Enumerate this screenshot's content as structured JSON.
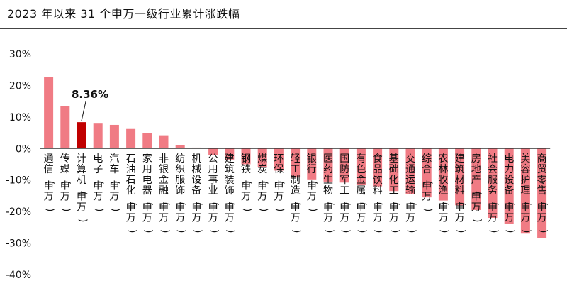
{
  "title": "2023 年以来 31 个申万一级行业累计涨跌幅",
  "chart_data": {
    "type": "bar",
    "ylim": [
      -40,
      30
    ],
    "yticks": [
      "30%",
      "20%",
      "10%",
      "0%",
      "-10%",
      "-20%",
      "-30%",
      "-40%"
    ],
    "grid": false,
    "legend": "none",
    "colors": {
      "bar": "#f07b84",
      "highlight": "#c00000"
    },
    "categories": [
      "通信(申万)",
      "传媒(申万)",
      "计算机(申万)",
      "电子(申万)",
      "汽车(申万)",
      "石油石化(申万)",
      "家用电器(申万)",
      "非银金融(申万)",
      "纺织服饰(申万)",
      "机械设备(申万)",
      "公用事业(申万)",
      "建筑装饰(申万)",
      "钢铁(申万)",
      "煤炭(申万)",
      "环保(申万)",
      "轻工制造(申万)",
      "银行(申万)",
      "医药生物(申万)",
      "国防军工(申万)",
      "有色金属(申万)",
      "食品饮料(申万)",
      "基础化工(申万)",
      "交通运输(申万)",
      "综合(申万)",
      "农林牧渔(申万)",
      "建筑材料(申万)",
      "房地产(申万)",
      "社会服务(申万)",
      "电力设备(申万)",
      "美容护理(申万)",
      "商贸零售(申万)"
    ],
    "values": [
      22.6,
      13.4,
      8.36,
      7.9,
      7.5,
      6.2,
      4.8,
      4.2,
      1.0,
      0.3,
      -2.0,
      -3.5,
      -5.0,
      -5.8,
      -7.0,
      -9.2,
      -9.8,
      -10.5,
      -10.8,
      -11.5,
      -12.0,
      -13.5,
      -14.5,
      -15.5,
      -16.5,
      -18.0,
      -19.5,
      -22.0,
      -24.0,
      -27.0,
      -28.5
    ],
    "highlight_index": 2,
    "annotation": "8.36%"
  }
}
